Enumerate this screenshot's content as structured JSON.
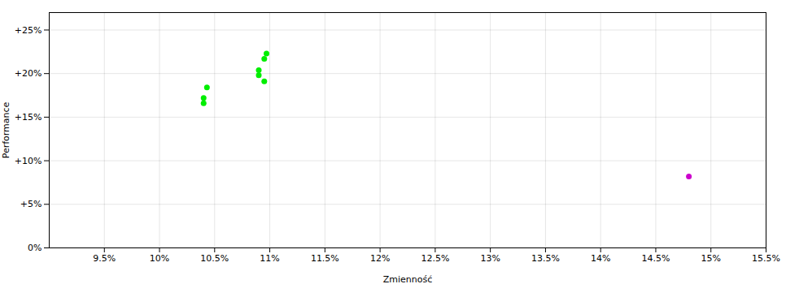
{
  "chart_data": {
    "type": "scatter",
    "xlabel": "Zmienność",
    "ylabel": "Performance",
    "xlim": [
      0.09,
      0.155
    ],
    "ylim": [
      0.0,
      0.27
    ],
    "xticks": [
      {
        "value": 0.095,
        "label": "9.5%"
      },
      {
        "value": 0.1,
        "label": "10%"
      },
      {
        "value": 0.105,
        "label": "10.5%"
      },
      {
        "value": 0.11,
        "label": "11%"
      },
      {
        "value": 0.115,
        "label": "11.5%"
      },
      {
        "value": 0.12,
        "label": "12%"
      },
      {
        "value": 0.125,
        "label": "12.5%"
      },
      {
        "value": 0.13,
        "label": "13%"
      },
      {
        "value": 0.135,
        "label": "13.5%"
      },
      {
        "value": 0.14,
        "label": "14%"
      },
      {
        "value": 0.145,
        "label": "14.5%"
      },
      {
        "value": 0.15,
        "label": "15%"
      },
      {
        "value": 0.155,
        "label": "15.5%"
      }
    ],
    "yticks": [
      {
        "value": 0.0,
        "label": "0%"
      },
      {
        "value": 0.05,
        "label": "+5%"
      },
      {
        "value": 0.1,
        "label": "+10%"
      },
      {
        "value": 0.15,
        "label": "+15%"
      },
      {
        "value": 0.2,
        "label": "+20%"
      },
      {
        "value": 0.25,
        "label": "+25%"
      }
    ],
    "grid": true,
    "series": [
      {
        "color": "#00ee00",
        "x": [
          0.1097,
          0.1095,
          0.109,
          0.109,
          0.1095,
          0.1043,
          0.104,
          0.104
        ],
        "values": [
          0.223,
          0.217,
          0.204,
          0.198,
          0.191,
          0.184,
          0.172,
          0.166
        ]
      },
      {
        "color": "#cc00cc",
        "x": [
          0.148
        ],
        "values": [
          0.082
        ]
      }
    ]
  }
}
